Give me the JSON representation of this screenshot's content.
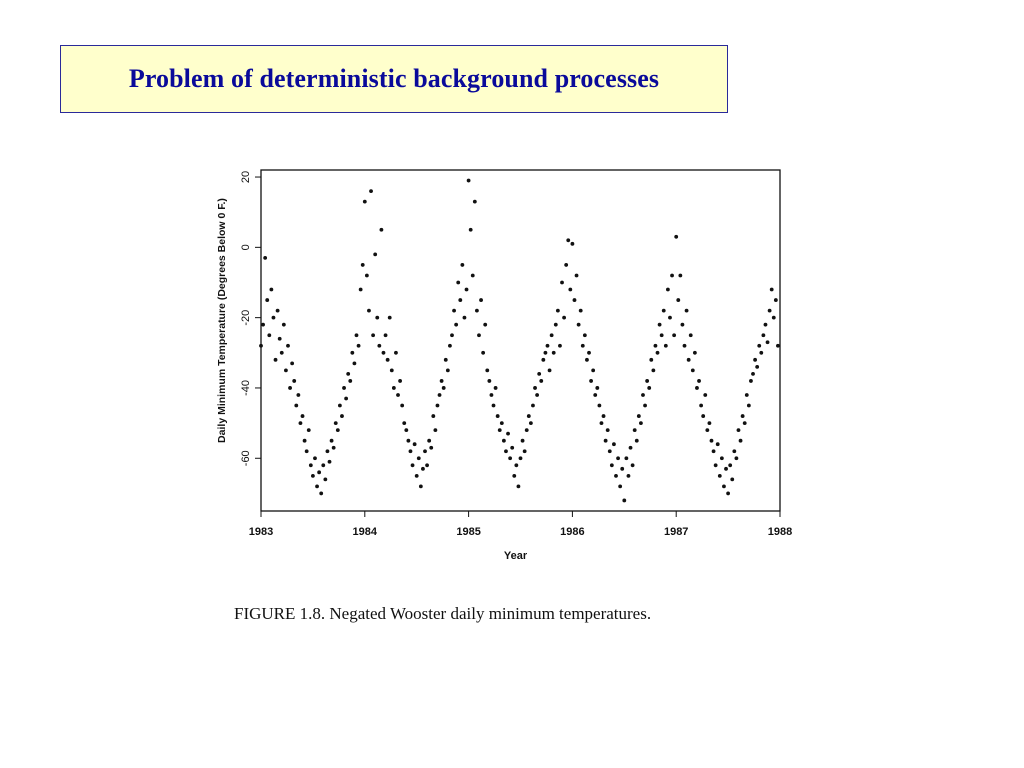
{
  "slide": {
    "title": "Problem of deterministic background processes",
    "caption": "FIGURE 1.8. Negated Wooster daily minimum temperatures."
  },
  "colors": {
    "title_text": "#0a0a9a",
    "title_fill": "#ffffcc",
    "title_border": "#2a2a9a",
    "points": "#111111"
  },
  "chart_data": {
    "type": "scatter",
    "title": "",
    "xlabel": "Year",
    "ylabel": "Daily Minimum Temperature (Degrees Below 0 F.)",
    "xlim": [
      1983,
      1988
    ],
    "ylim": [
      -75,
      22
    ],
    "x_ticks": [
      1983,
      1984,
      1985,
      1986,
      1987,
      1988
    ],
    "x_tick_labels": [
      "1983",
      "1984",
      "1985",
      "1986",
      "1987",
      "1988"
    ],
    "y_ticks": [
      20,
      0,
      -20,
      -40,
      -60
    ],
    "y_tick_labels": [
      "20",
      "0",
      "-20",
      "-40",
      "-60"
    ],
    "grid": false,
    "series": [
      {
        "name": "",
        "points": [
          [
            1983.0,
            -28
          ],
          [
            1983.02,
            -22
          ],
          [
            1983.04,
            -3
          ],
          [
            1983.06,
            -15
          ],
          [
            1983.08,
            -25
          ],
          [
            1983.1,
            -12
          ],
          [
            1983.12,
            -20
          ],
          [
            1983.14,
            -32
          ],
          [
            1983.16,
            -18
          ],
          [
            1983.18,
            -26
          ],
          [
            1983.2,
            -30
          ],
          [
            1983.22,
            -22
          ],
          [
            1983.24,
            -35
          ],
          [
            1983.26,
            -28
          ],
          [
            1983.28,
            -40
          ],
          [
            1983.3,
            -33
          ],
          [
            1983.32,
            -38
          ],
          [
            1983.34,
            -45
          ],
          [
            1983.36,
            -42
          ],
          [
            1983.38,
            -50
          ],
          [
            1983.4,
            -48
          ],
          [
            1983.42,
            -55
          ],
          [
            1983.44,
            -58
          ],
          [
            1983.46,
            -52
          ],
          [
            1983.48,
            -62
          ],
          [
            1983.5,
            -65
          ],
          [
            1983.52,
            -60
          ],
          [
            1983.54,
            -68
          ],
          [
            1983.56,
            -64
          ],
          [
            1983.58,
            -70
          ],
          [
            1983.6,
            -62
          ],
          [
            1983.62,
            -66
          ],
          [
            1983.64,
            -58
          ],
          [
            1983.66,
            -61
          ],
          [
            1983.68,
            -55
          ],
          [
            1983.7,
            -57
          ],
          [
            1983.72,
            -50
          ],
          [
            1983.74,
            -52
          ],
          [
            1983.76,
            -45
          ],
          [
            1983.78,
            -48
          ],
          [
            1983.8,
            -40
          ],
          [
            1983.82,
            -43
          ],
          [
            1983.84,
            -36
          ],
          [
            1983.86,
            -38
          ],
          [
            1983.88,
            -30
          ],
          [
            1983.9,
            -33
          ],
          [
            1983.92,
            -25
          ],
          [
            1983.94,
            -28
          ],
          [
            1983.96,
            -12
          ],
          [
            1983.98,
            -5
          ],
          [
            1984.0,
            13
          ],
          [
            1984.02,
            -8
          ],
          [
            1984.04,
            -18
          ],
          [
            1984.06,
            16
          ],
          [
            1984.08,
            -25
          ],
          [
            1984.1,
            -2
          ],
          [
            1984.12,
            -20
          ],
          [
            1984.14,
            -28
          ],
          [
            1984.16,
            5
          ],
          [
            1984.18,
            -30
          ],
          [
            1984.2,
            -25
          ],
          [
            1984.22,
            -32
          ],
          [
            1984.24,
            -20
          ],
          [
            1984.26,
            -35
          ],
          [
            1984.28,
            -40
          ],
          [
            1984.3,
            -30
          ],
          [
            1984.32,
            -42
          ],
          [
            1984.34,
            -38
          ],
          [
            1984.36,
            -45
          ],
          [
            1984.38,
            -50
          ],
          [
            1984.4,
            -52
          ],
          [
            1984.42,
            -55
          ],
          [
            1984.44,
            -58
          ],
          [
            1984.46,
            -62
          ],
          [
            1984.48,
            -56
          ],
          [
            1984.5,
            -65
          ],
          [
            1984.52,
            -60
          ],
          [
            1984.54,
            -68
          ],
          [
            1984.56,
            -63
          ],
          [
            1984.58,
            -58
          ],
          [
            1984.6,
            -62
          ],
          [
            1984.62,
            -55
          ],
          [
            1984.64,
            -57
          ],
          [
            1984.66,
            -48
          ],
          [
            1984.68,
            -52
          ],
          [
            1984.7,
            -45
          ],
          [
            1984.72,
            -42
          ],
          [
            1984.74,
            -38
          ],
          [
            1984.76,
            -40
          ],
          [
            1984.78,
            -32
          ],
          [
            1984.8,
            -35
          ],
          [
            1984.82,
            -28
          ],
          [
            1984.84,
            -25
          ],
          [
            1984.86,
            -18
          ],
          [
            1984.88,
            -22
          ],
          [
            1984.9,
            -10
          ],
          [
            1984.92,
            -15
          ],
          [
            1984.94,
            -5
          ],
          [
            1984.96,
            -20
          ],
          [
            1984.98,
            -12
          ],
          [
            1985.0,
            19
          ],
          [
            1985.02,
            5
          ],
          [
            1985.04,
            -8
          ],
          [
            1985.06,
            13
          ],
          [
            1985.08,
            -18
          ],
          [
            1985.1,
            -25
          ],
          [
            1985.12,
            -15
          ],
          [
            1985.14,
            -30
          ],
          [
            1985.16,
            -22
          ],
          [
            1985.18,
            -35
          ],
          [
            1985.2,
            -38
          ],
          [
            1985.22,
            -42
          ],
          [
            1985.24,
            -45
          ],
          [
            1985.26,
            -40
          ],
          [
            1985.28,
            -48
          ],
          [
            1985.3,
            -52
          ],
          [
            1985.32,
            -50
          ],
          [
            1985.34,
            -55
          ],
          [
            1985.36,
            -58
          ],
          [
            1985.38,
            -53
          ],
          [
            1985.4,
            -60
          ],
          [
            1985.42,
            -57
          ],
          [
            1985.44,
            -65
          ],
          [
            1985.46,
            -62
          ],
          [
            1985.48,
            -68
          ],
          [
            1985.5,
            -60
          ],
          [
            1985.52,
            -55
          ],
          [
            1985.54,
            -58
          ],
          [
            1985.56,
            -52
          ],
          [
            1985.58,
            -48
          ],
          [
            1985.6,
            -50
          ],
          [
            1985.62,
            -45
          ],
          [
            1985.64,
            -40
          ],
          [
            1985.66,
            -42
          ],
          [
            1985.68,
            -36
          ],
          [
            1985.7,
            -38
          ],
          [
            1985.72,
            -32
          ],
          [
            1985.74,
            -30
          ],
          [
            1985.76,
            -28
          ],
          [
            1985.78,
            -35
          ],
          [
            1985.8,
            -25
          ],
          [
            1985.82,
            -30
          ],
          [
            1985.84,
            -22
          ],
          [
            1985.86,
            -18
          ],
          [
            1985.88,
            -28
          ],
          [
            1985.9,
            -10
          ],
          [
            1985.92,
            -20
          ],
          [
            1985.94,
            -5
          ],
          [
            1985.96,
            2
          ],
          [
            1985.98,
            -12
          ],
          [
            1986.0,
            1
          ],
          [
            1986.02,
            -15
          ],
          [
            1986.04,
            -8
          ],
          [
            1986.06,
            -22
          ],
          [
            1986.08,
            -18
          ],
          [
            1986.1,
            -28
          ],
          [
            1986.12,
            -25
          ],
          [
            1986.14,
            -32
          ],
          [
            1986.16,
            -30
          ],
          [
            1986.18,
            -38
          ],
          [
            1986.2,
            -35
          ],
          [
            1986.22,
            -42
          ],
          [
            1986.24,
            -40
          ],
          [
            1986.26,
            -45
          ],
          [
            1986.28,
            -50
          ],
          [
            1986.3,
            -48
          ],
          [
            1986.32,
            -55
          ],
          [
            1986.34,
            -52
          ],
          [
            1986.36,
            -58
          ],
          [
            1986.38,
            -62
          ],
          [
            1986.4,
            -56
          ],
          [
            1986.42,
            -65
          ],
          [
            1986.44,
            -60
          ],
          [
            1986.46,
            -68
          ],
          [
            1986.48,
            -63
          ],
          [
            1986.5,
            -72
          ],
          [
            1986.52,
            -60
          ],
          [
            1986.54,
            -65
          ],
          [
            1986.56,
            -57
          ],
          [
            1986.58,
            -62
          ],
          [
            1986.6,
            -52
          ],
          [
            1986.62,
            -55
          ],
          [
            1986.64,
            -48
          ],
          [
            1986.66,
            -50
          ],
          [
            1986.68,
            -42
          ],
          [
            1986.7,
            -45
          ],
          [
            1986.72,
            -38
          ],
          [
            1986.74,
            -40
          ],
          [
            1986.76,
            -32
          ],
          [
            1986.78,
            -35
          ],
          [
            1986.8,
            -28
          ],
          [
            1986.82,
            -30
          ],
          [
            1986.84,
            -22
          ],
          [
            1986.86,
            -25
          ],
          [
            1986.88,
            -18
          ],
          [
            1986.9,
            -28
          ],
          [
            1986.92,
            -12
          ],
          [
            1986.94,
            -20
          ],
          [
            1986.96,
            -8
          ],
          [
            1986.98,
            -25
          ],
          [
            1987.0,
            3
          ],
          [
            1987.02,
            -15
          ],
          [
            1987.04,
            -8
          ],
          [
            1987.06,
            -22
          ],
          [
            1987.08,
            -28
          ],
          [
            1987.1,
            -18
          ],
          [
            1987.12,
            -32
          ],
          [
            1987.14,
            -25
          ],
          [
            1987.16,
            -35
          ],
          [
            1987.18,
            -30
          ],
          [
            1987.2,
            -40
          ],
          [
            1987.22,
            -38
          ],
          [
            1987.24,
            -45
          ],
          [
            1987.26,
            -48
          ],
          [
            1987.28,
            -42
          ],
          [
            1987.3,
            -52
          ],
          [
            1987.32,
            -50
          ],
          [
            1987.34,
            -55
          ],
          [
            1987.36,
            -58
          ],
          [
            1987.38,
            -62
          ],
          [
            1987.4,
            -56
          ],
          [
            1987.42,
            -65
          ],
          [
            1987.44,
            -60
          ],
          [
            1987.46,
            -68
          ],
          [
            1987.48,
            -63
          ],
          [
            1987.5,
            -70
          ],
          [
            1987.52,
            -62
          ],
          [
            1987.54,
            -66
          ],
          [
            1987.56,
            -58
          ],
          [
            1987.58,
            -60
          ],
          [
            1987.6,
            -52
          ],
          [
            1987.62,
            -55
          ],
          [
            1987.64,
            -48
          ],
          [
            1987.66,
            -50
          ],
          [
            1987.68,
            -42
          ],
          [
            1987.7,
            -45
          ],
          [
            1987.72,
            -38
          ],
          [
            1987.74,
            -36
          ],
          [
            1987.76,
            -32
          ],
          [
            1987.78,
            -34
          ],
          [
            1987.8,
            -28
          ],
          [
            1987.82,
            -30
          ],
          [
            1987.84,
            -25
          ],
          [
            1987.86,
            -22
          ],
          [
            1987.88,
            -27
          ],
          [
            1987.9,
            -18
          ],
          [
            1987.92,
            -12
          ],
          [
            1987.94,
            -20
          ],
          [
            1987.96,
            -15
          ],
          [
            1987.98,
            -28
          ]
        ]
      }
    ]
  }
}
